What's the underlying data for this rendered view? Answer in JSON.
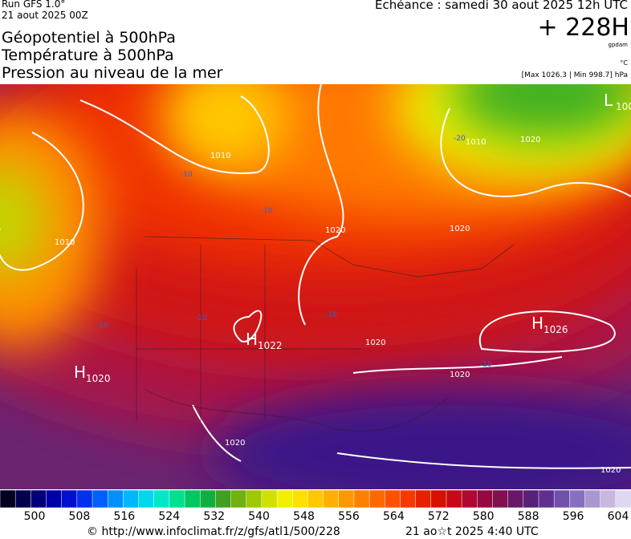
{
  "header": {
    "run": "Run GFS 1.0°",
    "run_date": "21 aout 2025 00Z",
    "titles": [
      "Géopotentiel à 500hPa",
      "Température à 500hPa",
      "Pression au niveau de la mer"
    ],
    "echeance": "Echéance : samedi 30 aout 2025 12h UTC",
    "offset": "+ 228H",
    "unit": "gpdam",
    "temp_unit": "°C",
    "pressure_range": "[Max 1026.3 | Min 998.7] hPa"
  },
  "map": {
    "centers": [
      {
        "letter": "H",
        "value": "1026"
      },
      {
        "letter": "H",
        "value": "1022"
      },
      {
        "letter": "H",
        "value": "1020"
      },
      {
        "letter": "L",
        "value": "100"
      }
    ],
    "isobar_labels": [
      "1010",
      "1010",
      "1020",
      "1020",
      "1020",
      "1020",
      "1020",
      "1010",
      "1020",
      "1020"
    ],
    "temp_labels": [
      "-20",
      "-10",
      "-10",
      "-10",
      "-10",
      "-10",
      "-10"
    ]
  },
  "colorbar": {
    "colors": [
      "#000020",
      "#000050",
      "#00007a",
      "#0000a8",
      "#0010d0",
      "#0030f0",
      "#0060ff",
      "#0090ff",
      "#00b8ff",
      "#00d8f0",
      "#00e8c8",
      "#00e090",
      "#00c860",
      "#10b040",
      "#40a020",
      "#70b010",
      "#a0c800",
      "#d0e000",
      "#f0f000",
      "#ffe000",
      "#ffc800",
      "#ffb000",
      "#ff9800",
      "#ff8000",
      "#ff6800",
      "#ff5000",
      "#f83800",
      "#e82000",
      "#d81000",
      "#c80818",
      "#b00830",
      "#980840",
      "#801050",
      "#681868",
      "#582078",
      "#603090",
      "#7050a8",
      "#8870c0",
      "#a898d0",
      "#c8b8e0",
      "#e0d8f0"
    ],
    "labels": [
      500,
      508,
      516,
      524,
      532,
      540,
      548,
      556,
      564,
      572,
      580,
      588,
      596,
      604
    ]
  },
  "footer": {
    "url": "© http://www.infoclimat.fr/z/gfs/atl1/500/228",
    "stamp": "21 ao☆t 2025  4:40 UTC"
  }
}
